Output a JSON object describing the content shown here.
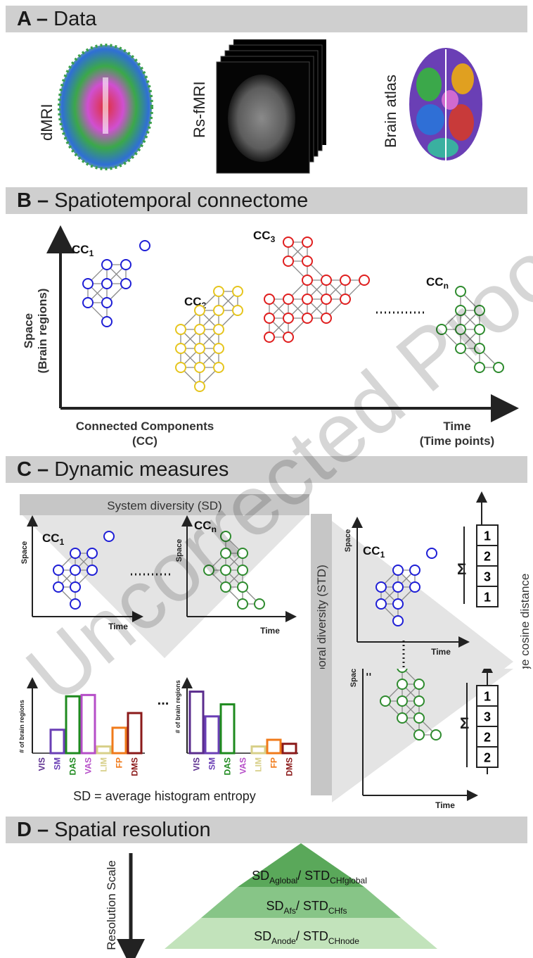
{
  "sections": {
    "a": {
      "letter": "A",
      "dash": " – ",
      "title": "Data"
    },
    "b": {
      "letter": "B",
      "dash": " – ",
      "title": "Spatiotemporal connectome"
    },
    "c": {
      "letter": "C",
      "dash": " – ",
      "title": "Dynamic measures"
    },
    "d": {
      "letter": "D",
      "dash": " – ",
      "title": "Spatial resolution"
    }
  },
  "panel_a": {
    "dmri": "dMRI",
    "rsfmri": "Rs-fMRI",
    "atlas": "Brain atlas"
  },
  "panel_b": {
    "y_label_1": "Space",
    "y_label_2": "(Brain regions)",
    "x_left_1": "Connected Components",
    "x_left_2": "(CC)",
    "x_right_1": "Time",
    "x_right_2": "(Time points)",
    "cc": "CC",
    "sub1": "1",
    "sub2": "2",
    "sub3": "3",
    "subn": "n"
  },
  "panel_c": {
    "sd_header": "System diversity (SD)",
    "std_vertical": "Spatiotemporal diversity (STD)",
    "space": "Space",
    "time": "Time",
    "cc": "CC",
    "sub1": "1",
    "subn": "n",
    "hist_ylabel": "# of brain regions",
    "categories": [
      "VIS",
      "SM",
      "DAS",
      "VAS",
      "LIM",
      "FP",
      "DMS"
    ],
    "category_colors": [
      "#5b2d8e",
      "#6a3fb5",
      "#1e8a1e",
      "#b64ec8",
      "#d8d08a",
      "#f07a1a",
      "#8b1a1a"
    ],
    "hist1": [
      0,
      0.35,
      0.85,
      0.87,
      0.1,
      0.38,
      0.6
    ],
    "hist2": [
      0.92,
      0.55,
      0.73,
      0,
      0.1,
      0.2,
      0.14
    ],
    "ellipsis": "...",
    "sd_formula": "SD = average histogram entropy",
    "std_formula": "STD = average cosine distance",
    "sigma": "Σ",
    "vector1": [
      "1",
      "2",
      "3",
      "1"
    ],
    "vector2": [
      "1",
      "3",
      "2",
      "2"
    ]
  },
  "panel_d": {
    "scale_label": "Resolution Scale",
    "row1": {
      "sd": "SD",
      "sd_sub": "Aglobal",
      "sep": "/ ",
      "std": "STD",
      "std_sub": "CHfglobal"
    },
    "row2": {
      "sd": "SD",
      "sd_sub": "Afs",
      "sep": "/ ",
      "std": "STD",
      "std_sub": "CHfs"
    },
    "row3": {
      "sd": "SD",
      "sd_sub": "Anode",
      "sep": "/ ",
      "std": "STD",
      "std_sub": "CHnode"
    },
    "colors": [
      "#5aa85a",
      "#87c587",
      "#c2e3bb"
    ]
  },
  "watermark": "Uncorrected Proof"
}
